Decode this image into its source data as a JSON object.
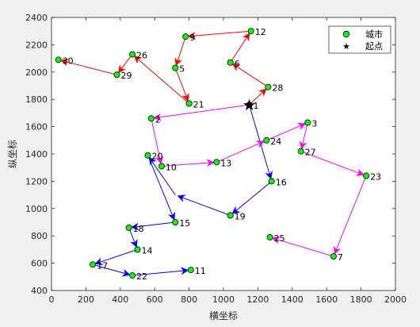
{
  "chart_data": {
    "type": "scatter",
    "title": "",
    "xlabel": "横坐标",
    "ylabel": "纵坐标",
    "xlim": [
      0,
      2000
    ],
    "ylim": [
      400,
      2400
    ],
    "x_ticks": [
      0,
      200,
      400,
      600,
      800,
      1000,
      1200,
      1400,
      1600,
      1800,
      2000
    ],
    "y_ticks": [
      400,
      600,
      800,
      1000,
      1200,
      1400,
      1600,
      1800,
      2000,
      2200,
      2400
    ],
    "grid": false,
    "legend": {
      "placement": "top-right",
      "entries": [
        {
          "label": "城市",
          "marker": "green-circle"
        },
        {
          "label": "起点",
          "marker": "black-star"
        }
      ]
    },
    "cities": [
      {
        "id": "1",
        "x": 1150,
        "y": 1760
      },
      {
        "id": "2",
        "x": 580,
        "y": 1660
      },
      {
        "id": "3",
        "x": 1490,
        "y": 1630
      },
      {
        "id": "5",
        "x": 720,
        "y": 2030
      },
      {
        "id": "6",
        "x": 1040,
        "y": 2070
      },
      {
        "id": "7",
        "x": 1640,
        "y": 650
      },
      {
        "id": "9",
        "x": 780,
        "y": 2260
      },
      {
        "id": "10",
        "x": 640,
        "y": 1310
      },
      {
        "id": "11",
        "x": 810,
        "y": 550
      },
      {
        "id": "12",
        "x": 1160,
        "y": 2300
      },
      {
        "id": "13",
        "x": 960,
        "y": 1340
      },
      {
        "id": "14",
        "x": 500,
        "y": 700
      },
      {
        "id": "15",
        "x": 720,
        "y": 900
      },
      {
        "id": "16",
        "x": 1280,
        "y": 1200
      },
      {
        "id": "17",
        "x": 240,
        "y": 590
      },
      {
        "id": "18",
        "x": 450,
        "y": 860
      },
      {
        "id": "19",
        "x": 1040,
        "y": 950
      },
      {
        "id": "20",
        "x": 560,
        "y": 1390
      },
      {
        "id": "21",
        "x": 800,
        "y": 1770
      },
      {
        "id": "22",
        "x": 470,
        "y": 510
      },
      {
        "id": "23",
        "x": 1830,
        "y": 1240
      },
      {
        "id": "24",
        "x": 1250,
        "y": 1500
      },
      {
        "id": "25",
        "x": 1270,
        "y": 790
      },
      {
        "id": "26",
        "x": 470,
        "y": 2130
      },
      {
        "id": "27",
        "x": 1450,
        "y": 1420
      },
      {
        "id": "28",
        "x": 1260,
        "y": 1890
      },
      {
        "id": "29",
        "x": 380,
        "y": 1980
      },
      {
        "id": "30",
        "x": 40,
        "y": 2090
      }
    ],
    "start": {
      "x": 1150,
      "y": 1760
    },
    "path_colors": {
      "red": "#ff0000",
      "blue": "#0000ff",
      "magenta": "#ff00ff"
    },
    "routes": [
      {
        "color": "red",
        "points": [
          [
            1150,
            1760
          ],
          [
            1260,
            1890
          ],
          [
            1040,
            2070
          ],
          [
            1160,
            2300
          ],
          [
            780,
            2260
          ],
          [
            720,
            2030
          ],
          [
            800,
            1770
          ],
          [
            470,
            2130
          ],
          [
            380,
            1980
          ],
          [
            40,
            2090
          ]
        ]
      },
      {
        "color": "blue",
        "points": [
          [
            1150,
            1760
          ],
          [
            1280,
            1200
          ],
          [
            1040,
            950
          ],
          [
            720,
            1100
          ],
          [
            560,
            1390
          ],
          [
            720,
            900
          ],
          [
            450,
            860
          ],
          [
            500,
            700
          ],
          [
            240,
            590
          ],
          [
            470,
            510
          ],
          [
            810,
            550
          ]
        ]
      },
      {
        "color": "magenta",
        "points": [
          [
            1150,
            1760
          ],
          [
            580,
            1660
          ],
          [
            640,
            1310
          ],
          [
            960,
            1340
          ],
          [
            1250,
            1500
          ],
          [
            1490,
            1630
          ],
          [
            1450,
            1420
          ],
          [
            1830,
            1240
          ],
          [
            1640,
            650
          ],
          [
            1270,
            790
          ]
        ]
      }
    ]
  }
}
